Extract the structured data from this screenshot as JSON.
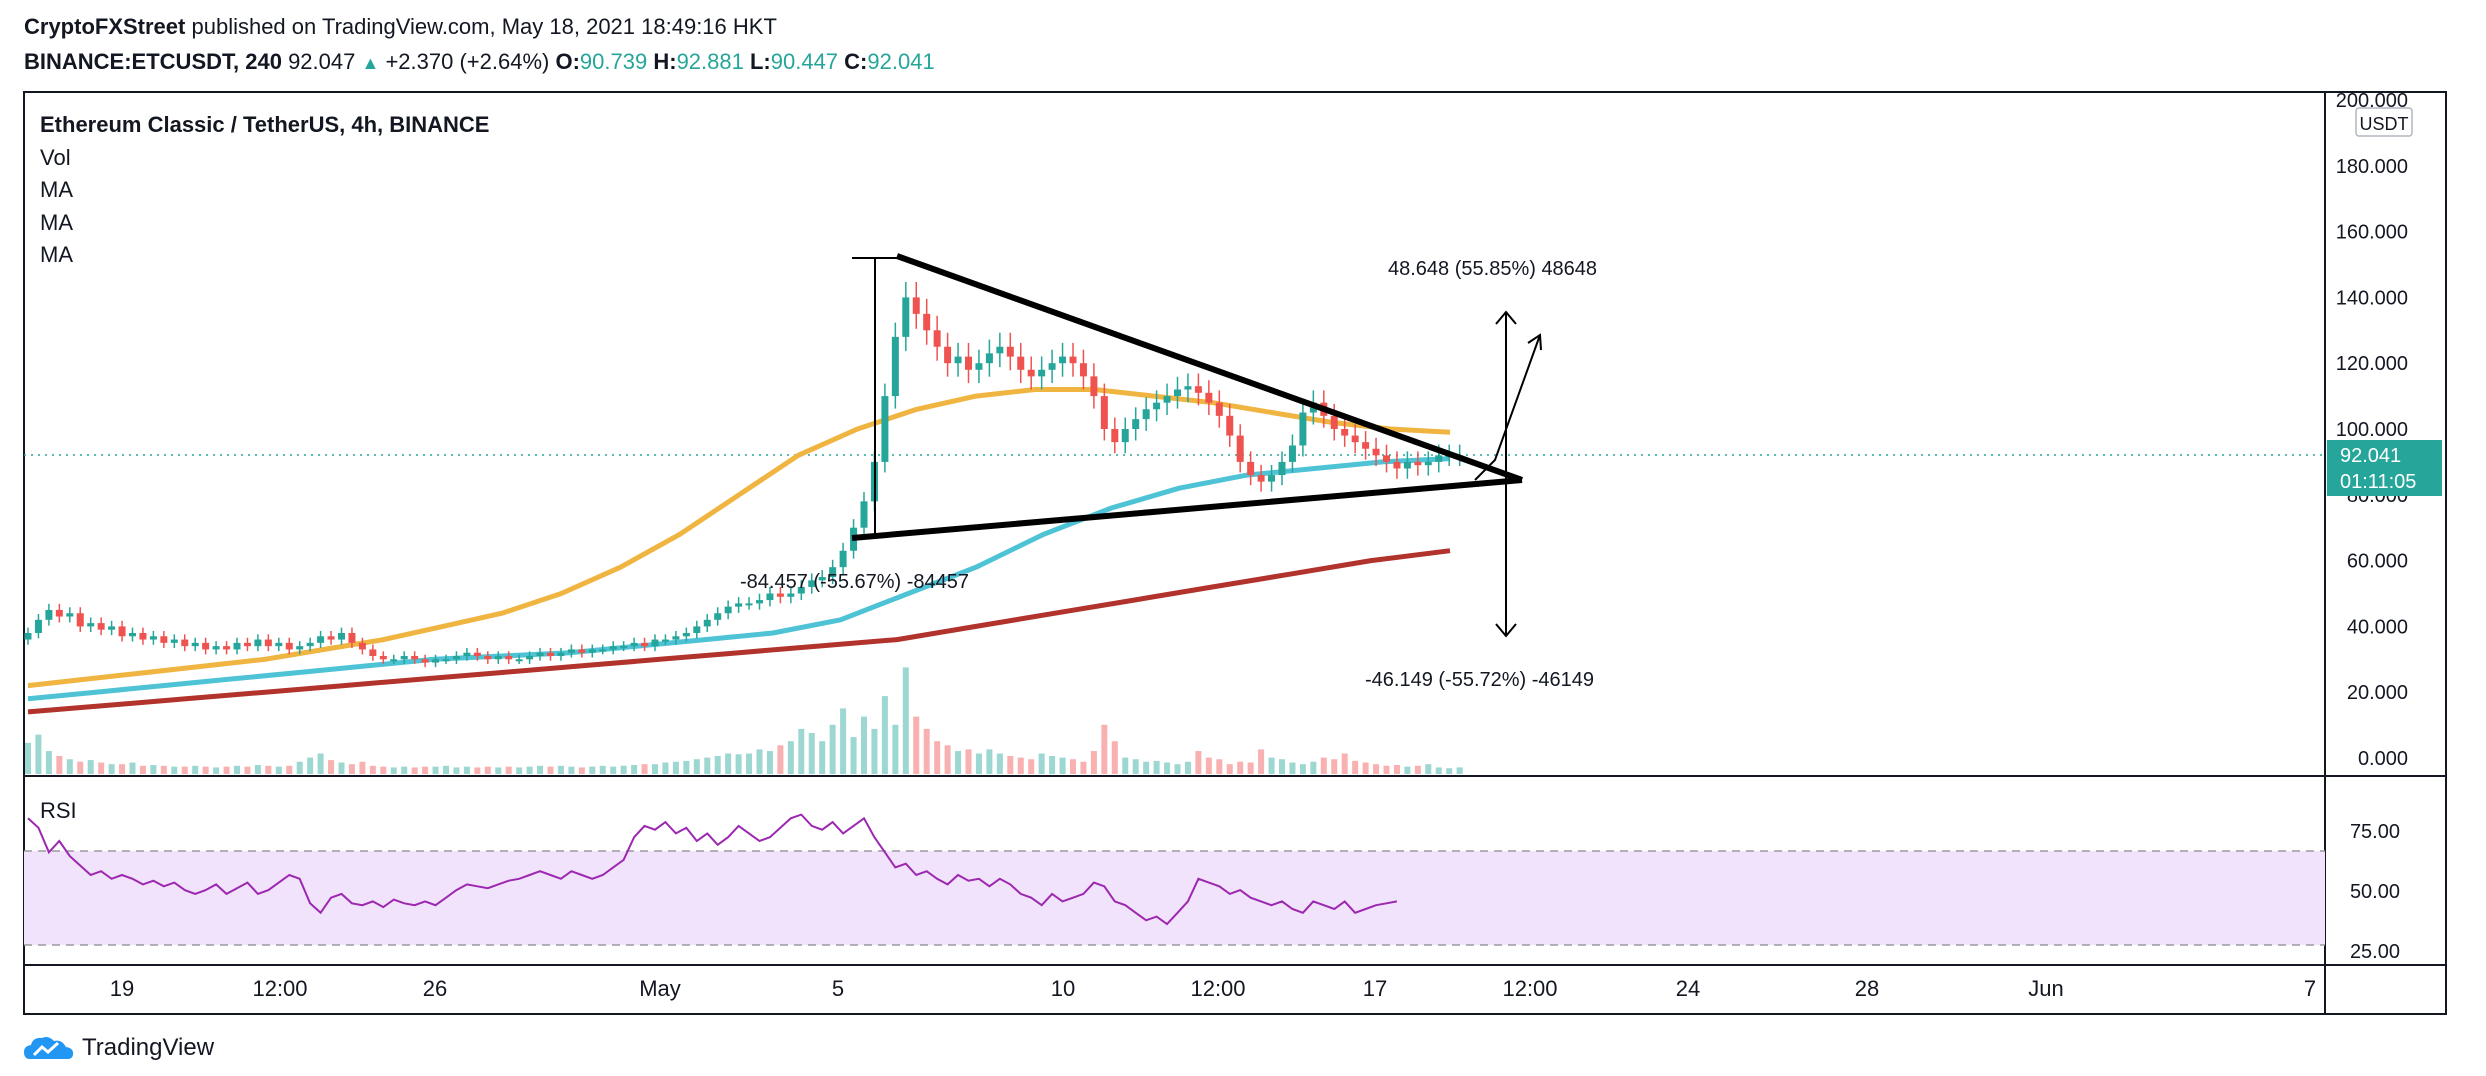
{
  "header": {
    "publisher": "CryptoFXStreet",
    "published_text": "published on TradingView.com, May 18, 2021 18:49:16 HKT",
    "symbol": "BINANCE:ETCUSDT, 240",
    "last": "92.047",
    "change": "+2.370 (+2.64%)",
    "o_label": "O:",
    "o_value": "90.739",
    "h_label": "H:",
    "h_value": "92.881",
    "l_label": "L:",
    "l_value": "90.447",
    "c_label": "C:",
    "c_value": "92.041"
  },
  "legend": {
    "title": "Ethereum Classic / TetherUS, 4h, BINANCE",
    "items": [
      "Vol",
      "MA",
      "MA",
      "MA"
    ]
  },
  "price_axis": {
    "currency": "USDT",
    "current_price": "92.041",
    "countdown": "01:11:05"
  },
  "rsi": {
    "label": "RSI"
  },
  "annotations": {
    "measure_top": "48.648 (55.85%) 48648",
    "measure_bottom": "-46.149 (-55.72%) -46149",
    "measure_left": "-84.457 (-55.67%) -84457"
  },
  "footer": {
    "brand": "TradingView"
  },
  "colors": {
    "up": "#26a69a",
    "down": "#ef5350",
    "ma_fast": "#f0b440",
    "ma_mid": "#4ec3d6",
    "ma_slow": "#b2322c",
    "rsi_line": "#9c27b0",
    "rsi_band": "#f1e3fb"
  },
  "chart_data": {
    "type": "candlestick",
    "title": "Ethereum Classic / TetherUS, 4h, BINANCE",
    "price_ylim": [
      0,
      200
    ],
    "price_ticks": [
      "200.000",
      "180.000",
      "160.000",
      "140.000",
      "120.000",
      "100.000",
      "80.000",
      "60.000",
      "40.000",
      "20.000",
      "0.000"
    ],
    "rsi_ticks": [
      "75.00",
      "50.00",
      "25.00"
    ],
    "x_ticks": [
      "19",
      "12:00",
      "26",
      "May",
      "5",
      "10",
      "12:00",
      "17",
      "12:00",
      "24",
      "28",
      "Jun",
      "7"
    ],
    "close": [
      38,
      42,
      45,
      43,
      44,
      40,
      41,
      39,
      40,
      37,
      38,
      36,
      37,
      35,
      36,
      34,
      35,
      33,
      34,
      33,
      35,
      34,
      36,
      34,
      35,
      33,
      34,
      35,
      37,
      36,
      38,
      35,
      33,
      31,
      30,
      30,
      31,
      30,
      29,
      30,
      30,
      31,
      32,
      31,
      30,
      31,
      30,
      30,
      31,
      32,
      31,
      32,
      33,
      32,
      33,
      33,
      34,
      34,
      35,
      34,
      36,
      36,
      37,
      38,
      40,
      42,
      44,
      46,
      47,
      47,
      48,
      50,
      49,
      50,
      52,
      54,
      55,
      58,
      63,
      70,
      78,
      90,
      110,
      128,
      140,
      135,
      130,
      125,
      120,
      122,
      118,
      120,
      123,
      125,
      122,
      118,
      116,
      118,
      120,
      122,
      120,
      116,
      110,
      100,
      96,
      100,
      103,
      106,
      108,
      110,
      112,
      113,
      111,
      108,
      104,
      98,
      90,
      86,
      84,
      86,
      90,
      95,
      105,
      108,
      104,
      100,
      98,
      96,
      94,
      92,
      90,
      88,
      90,
      89,
      90,
      92,
      92,
      92
    ],
    "volume": [
      38,
      48,
      28,
      22,
      18,
      15,
      17,
      14,
      12,
      12,
      14,
      10,
      11,
      10,
      9,
      9,
      10,
      9,
      8,
      9,
      10,
      9,
      11,
      10,
      9,
      10,
      15,
      20,
      25,
      17,
      14,
      12,
      15,
      10,
      9,
      8,
      9,
      8,
      9,
      9,
      10,
      8,
      9,
      8,
      9,
      8,
      9,
      8,
      9,
      10,
      9,
      10,
      9,
      8,
      9,
      10,
      9,
      10,
      11,
      12,
      12,
      14,
      15,
      16,
      18,
      20,
      22,
      25,
      24,
      25,
      30,
      28,
      35,
      40,
      55,
      50,
      40,
      60,
      80,
      45,
      70,
      55,
      95,
      60,
      130,
      70,
      55,
      40,
      35,
      28,
      30,
      25,
      30,
      25,
      22,
      20,
      18,
      25,
      22,
      20,
      18,
      15,
      28,
      60,
      40,
      20,
      18,
      15,
      16,
      14,
      12,
      15,
      28,
      20,
      18,
      12,
      15,
      14,
      30,
      20,
      18,
      14,
      12,
      15,
      20,
      18,
      25,
      16,
      14,
      12,
      10,
      11,
      9,
      10,
      12,
      8,
      7,
      8
    ],
    "rsi": [
      90,
      85,
      72,
      78,
      70,
      65,
      60,
      62,
      58,
      60,
      58,
      55,
      57,
      54,
      56,
      52,
      50,
      52,
      55,
      50,
      53,
      56,
      50,
      52,
      56,
      60,
      58,
      45,
      40,
      48,
      50,
      45,
      44,
      46,
      43,
      47,
      45,
      44,
      46,
      44,
      48,
      52,
      55,
      54,
      53,
      55,
      57,
      58,
      60,
      62,
      60,
      58,
      62,
      60,
      58,
      60,
      64,
      68,
      80,
      86,
      84,
      88,
      82,
      85,
      78,
      82,
      76,
      80,
      86,
      82,
      78,
      80,
      85,
      90,
      92,
      86,
      84,
      88,
      82,
      86,
      90,
      80,
      72,
      64,
      66,
      60,
      62,
      58,
      55,
      60,
      57,
      58,
      54,
      58,
      55,
      50,
      48,
      44,
      50,
      46,
      48,
      50,
      56,
      54,
      46,
      44,
      40,
      36,
      38,
      34,
      40,
      46,
      58,
      56,
      54,
      50,
      52,
      48,
      46,
      44,
      46,
      42,
      40,
      46,
      44,
      42,
      46,
      40,
      42,
      44,
      45,
      46
    ],
    "ma_fast": [
      22,
      24,
      26,
      28,
      30,
      33,
      36,
      40,
      44,
      50,
      58,
      68,
      80,
      92,
      100,
      106,
      110,
      112,
      112,
      110,
      108,
      105,
      102,
      100,
      99
    ],
    "ma_mid": [
      18,
      20,
      22,
      24,
      26,
      28,
      30,
      31,
      32,
      34,
      36,
      38,
      42,
      50,
      58,
      68,
      76,
      82,
      86,
      88,
      90,
      91
    ],
    "ma_slow": [
      14,
      16,
      18,
      20,
      22,
      24,
      26,
      28,
      30,
      32,
      34,
      36,
      40,
      44,
      48,
      52,
      56,
      60,
      63
    ]
  }
}
